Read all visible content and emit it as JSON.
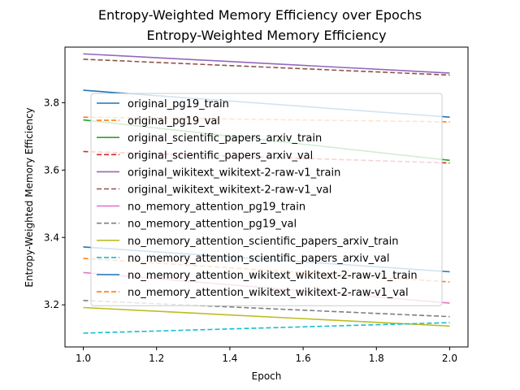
{
  "suptitle": "Entropy-Weighted Memory Efficiency over Epochs",
  "chart_data": {
    "type": "line",
    "title": "Entropy-Weighted Memory Efficiency",
    "xlabel": "Epoch",
    "ylabel": "Entropy-Weighted Memory Efficiency",
    "xlim": [
      0.95,
      2.05
    ],
    "ylim": [
      3.075,
      3.965
    ],
    "xticks": [
      1.0,
      1.2,
      1.4,
      1.6,
      1.8,
      2.0
    ],
    "yticks": [
      3.2,
      3.4,
      3.6,
      3.8
    ],
    "grid": false,
    "legend_position": "center",
    "x": [
      1.0,
      2.0
    ],
    "series": [
      {
        "name": "original_pg19_train",
        "values": [
          3.837,
          3.757
        ],
        "color": "#1f77b4",
        "dashed": false
      },
      {
        "name": "original_pg19_val",
        "values": [
          3.757,
          3.743
        ],
        "color": "#ff7f0e",
        "dashed": true
      },
      {
        "name": "original_scientific_papers_arxiv_train",
        "values": [
          3.749,
          3.629
        ],
        "color": "#2ca02c",
        "dashed": false
      },
      {
        "name": "original_scientific_papers_arxiv_val",
        "values": [
          3.655,
          3.621
        ],
        "color": "#d62728",
        "dashed": true
      },
      {
        "name": "original_wikitext_wikitext-2-raw-v1_train",
        "values": [
          3.945,
          3.888
        ],
        "color": "#9467bd",
        "dashed": false
      },
      {
        "name": "original_wikitext_wikitext-2-raw-v1_val",
        "values": [
          3.929,
          3.882
        ],
        "color": "#8c564b",
        "dashed": true
      },
      {
        "name": "no_memory_attention_pg19_train",
        "values": [
          3.296,
          3.205
        ],
        "color": "#e377c2",
        "dashed": false
      },
      {
        "name": "no_memory_attention_pg19_val",
        "values": [
          3.213,
          3.165
        ],
        "color": "#7f7f7f",
        "dashed": true
      },
      {
        "name": "no_memory_attention_scientific_papers_arxiv_train",
        "values": [
          3.192,
          3.137
        ],
        "color": "#bcbd22",
        "dashed": false
      },
      {
        "name": "no_memory_attention_scientific_papers_arxiv_val",
        "values": [
          3.116,
          3.147
        ],
        "color": "#17becf",
        "dashed": true
      },
      {
        "name": "no_memory_attention_wikitext_wikitext-2-raw-v1_train",
        "values": [
          3.372,
          3.298
        ],
        "color": "#1f77b4",
        "dashed": false
      },
      {
        "name": "no_memory_attention_wikitext_wikitext-2-raw-v1_val",
        "values": [
          3.338,
          3.268
        ],
        "color": "#ff7f0e",
        "dashed": true
      }
    ]
  }
}
